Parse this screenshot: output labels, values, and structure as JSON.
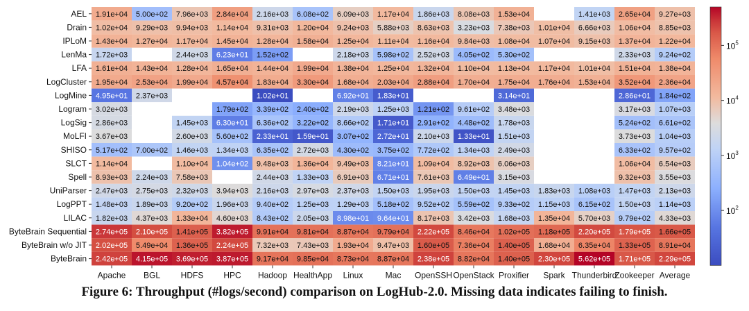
{
  "chart_data": {
    "type": "heatmap",
    "title": "",
    "xlabel": "",
    "ylabel": "",
    "categories": [
      "Apache",
      "BGL",
      "HDFS",
      "HPC",
      "Hadoop",
      "HealthApp",
      "Linux",
      "Mac",
      "OpenSSH",
      "OpenStack",
      "Proxifier",
      "Spark",
      "Thunderbird",
      "Zookeeper",
      "Average"
    ],
    "rows": [
      "AEL",
      "Drain",
      "IPLoM",
      "LenMa",
      "LFA",
      "LogCluster",
      "LogMine",
      "Logram",
      "LogSig",
      "MoLFI",
      "SHISO",
      "SLCT",
      "Spell",
      "UniParser",
      "LogPPT",
      "LILAC",
      "ByteBrain Sequential",
      "ByteBrain w/o JIT",
      "ByteBrain"
    ],
    "values": [
      [
        "1.91e+04",
        "5.00e+02",
        "7.96e+03",
        "2.84e+04",
        "2.16e+03",
        "6.08e+02",
        "6.09e+03",
        "1.17e+04",
        "1.86e+03",
        "8.08e+03",
        "1.53e+04",
        "",
        "1.41e+03",
        "2.65e+04",
        "9.27e+03"
      ],
      [
        "1.02e+04",
        "9.29e+03",
        "9.94e+03",
        "1.14e+04",
        "9.31e+03",
        "1.20e+04",
        "9.24e+03",
        "5.88e+03",
        "8.63e+03",
        "3.23e+03",
        "7.38e+03",
        "1.01e+04",
        "6.66e+03",
        "1.06e+04",
        "8.85e+03"
      ],
      [
        "1.43e+04",
        "1.27e+04",
        "1.17e+04",
        "1.45e+04",
        "1.28e+04",
        "1.58e+04",
        "1.25e+04",
        "1.11e+04",
        "1.16e+04",
        "9.84e+03",
        "1.08e+04",
        "1.07e+04",
        "9.15e+03",
        "1.37e+04",
        "1.22e+04"
      ],
      [
        "1.72e+03",
        "",
        "2.44e+03",
        "6.23e+01",
        "1.52e+02",
        "",
        "2.18e+03",
        "5.98e+02",
        "2.52e+03",
        "4.05e+02",
        "5.30e+02",
        "",
        "",
        "2.33e+03",
        "9.24e+02"
      ],
      [
        "1.61e+04",
        "1.43e+04",
        "1.28e+04",
        "1.65e+04",
        "1.44e+04",
        "1.99e+04",
        "1.38e+04",
        "1.25e+04",
        "1.32e+04",
        "1.10e+04",
        "1.13e+04",
        "1.17e+04",
        "1.01e+04",
        "1.51e+04",
        "1.38e+04"
      ],
      [
        "1.95e+04",
        "2.53e+04",
        "1.99e+04",
        "4.57e+04",
        "1.83e+04",
        "3.30e+04",
        "1.68e+04",
        "2.03e+04",
        "2.88e+04",
        "1.70e+04",
        "1.75e+04",
        "1.76e+04",
        "1.53e+04",
        "3.52e+04",
        "2.36e+04"
      ],
      [
        "4.95e+01",
        "2.37e+03",
        "",
        "",
        "1.02e+01",
        "",
        "6.92e+01",
        "1.83e+01",
        "",
        "",
        "3.14e+01",
        "",
        "",
        "2.86e+01",
        "1.84e+02"
      ],
      [
        "3.02e+03",
        "",
        "",
        "1.79e+02",
        "3.39e+02",
        "2.40e+02",
        "2.19e+03",
        "1.25e+03",
        "1.21e+02",
        "9.61e+02",
        "3.48e+03",
        "",
        "",
        "3.17e+03",
        "1.07e+03"
      ],
      [
        "2.86e+03",
        "",
        "1.45e+03",
        "6.30e+01",
        "6.36e+02",
        "3.22e+02",
        "8.66e+02",
        "1.71e+01",
        "2.91e+02",
        "4.48e+02",
        "1.78e+03",
        "",
        "",
        "5.24e+02",
        "6.61e+02"
      ],
      [
        "3.67e+03",
        "",
        "2.60e+03",
        "5.60e+02",
        "2.33e+01",
        "1.59e+01",
        "3.07e+02",
        "2.72e+01",
        "2.10e+03",
        "1.33e+01",
        "1.51e+03",
        "",
        "",
        "3.73e+03",
        "1.04e+03"
      ],
      [
        "5.17e+02",
        "7.00e+02",
        "1.46e+03",
        "1.34e+03",
        "6.35e+02",
        "2.72e+03",
        "4.30e+02",
        "3.75e+02",
        "7.72e+02",
        "1.34e+03",
        "2.49e+03",
        "",
        "",
        "6.33e+02",
        "9.57e+02"
      ],
      [
        "1.14e+04",
        "",
        "1.10e+04",
        "1.04e+02",
        "9.48e+03",
        "1.36e+04",
        "9.49e+03",
        "8.21e+01",
        "1.09e+04",
        "8.92e+03",
        "6.06e+03",
        "",
        "",
        "1.06e+04",
        "6.54e+03"
      ],
      [
        "8.93e+03",
        "2.24e+03",
        "7.58e+03",
        "",
        "2.44e+03",
        "1.33e+03",
        "6.91e+03",
        "6.71e+01",
        "7.61e+03",
        "6.49e+01",
        "3.15e+03",
        "",
        "",
        "9.32e+03",
        "3.55e+03"
      ],
      [
        "2.47e+03",
        "2.75e+03",
        "2.32e+03",
        "3.94e+03",
        "2.16e+03",
        "2.97e+03",
        "2.37e+03",
        "1.50e+03",
        "1.95e+03",
        "1.50e+03",
        "1.45e+03",
        "1.83e+03",
        "1.08e+03",
        "1.47e+03",
        "2.13e+03"
      ],
      [
        "1.48e+03",
        "1.89e+03",
        "9.20e+02",
        "1.96e+03",
        "9.40e+02",
        "1.25e+03",
        "1.29e+03",
        "5.18e+02",
        "9.52e+02",
        "5.59e+02",
        "9.33e+02",
        "1.15e+03",
        "6.15e+02",
        "1.50e+03",
        "1.14e+03"
      ],
      [
        "1.82e+03",
        "4.37e+03",
        "1.33e+04",
        "4.60e+03",
        "8.43e+02",
        "2.05e+03",
        "8.98e+01",
        "9.64e+01",
        "8.17e+03",
        "3.42e+03",
        "1.68e+03",
        "1.35e+04",
        "5.70e+03",
        "9.79e+02",
        "4.33e+03"
      ],
      [
        "2.74e+05",
        "2.10e+05",
        "1.41e+05",
        "3.82e+05",
        "9.91e+04",
        "9.81e+04",
        "8.87e+04",
        "9.79e+04",
        "2.22e+05",
        "8.46e+04",
        "1.02e+05",
        "1.18e+05",
        "2.20e+05",
        "1.79e+05",
        "1.66e+05"
      ],
      [
        "2.02e+05",
        "5.49e+04",
        "1.36e+05",
        "2.24e+05",
        "7.32e+03",
        "7.43e+03",
        "1.93e+04",
        "9.47e+03",
        "1.60e+05",
        "7.36e+04",
        "1.40e+05",
        "1.68e+04",
        "6.35e+04",
        "1.33e+05",
        "8.91e+04"
      ],
      [
        "2.42e+05",
        "4.15e+05",
        "3.69e+05",
        "3.87e+05",
        "9.17e+04",
        "9.85e+04",
        "8.73e+04",
        "8.87e+04",
        "2.38e+05",
        "8.82e+04",
        "1.40e+05",
        "2.30e+05",
        "5.62e+05",
        "1.71e+05",
        "2.29e+05"
      ]
    ],
    "colorbar": {
      "scale": "log",
      "range": [
        10,
        500000
      ],
      "ticks": [
        100,
        1000,
        10000,
        100000
      ],
      "tick_labels": [
        [
          "10",
          "2"
        ],
        [
          "10",
          "3"
        ],
        [
          "10",
          "4"
        ],
        [
          "10",
          "5"
        ]
      ],
      "colormap": "coolwarm"
    }
  },
  "caption": "Figure 6: Throughput (#logs/second) comparison on LogHub-2.0. Missing data indicates failing to finish."
}
